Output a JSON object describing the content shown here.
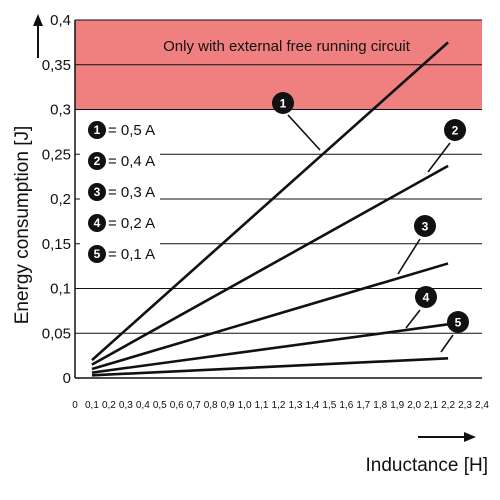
{
  "chart_data": {
    "type": "line",
    "title": "",
    "xlabel": "Inductance [H]",
    "ylabel": "Energy consumption  [J]",
    "xlim": [
      0,
      2.4
    ],
    "ylim": [
      0,
      0.4
    ],
    "x_ticks": [
      "0",
      "0,1",
      "0,2",
      "0,3",
      "0,4",
      "0,5",
      "0,6",
      "0,7",
      "0,8",
      "0,9",
      "1,0",
      "1,1",
      "1,2",
      "1,3",
      "1,4",
      "1,5",
      "1,6",
      "1,7",
      "1,8",
      "1,9",
      "2,0",
      "2,1",
      "2,2",
      "2,3",
      "2,4"
    ],
    "y_ticks": [
      "0",
      "0,05",
      "0,1",
      "0,15",
      "0,2",
      "0,25",
      "0,3",
      "0,35",
      "0,4"
    ],
    "grid": "horizontal",
    "region": {
      "label": "Only with external free running circuit",
      "y_from": 0.3,
      "y_to": 0.4,
      "color": "#f08080"
    },
    "series": [
      {
        "name": "= 0,5 A",
        "badge": "1",
        "x": [
          0.1,
          2.2
        ],
        "y": [
          0.02,
          0.375
        ]
      },
      {
        "name": "= 0,4 A",
        "badge": "2",
        "x": [
          0.1,
          2.2
        ],
        "y": [
          0.015,
          0.237
        ]
      },
      {
        "name": "= 0,3 A",
        "badge": "3",
        "x": [
          0.1,
          2.2
        ],
        "y": [
          0.01,
          0.128
        ]
      },
      {
        "name": "= 0,2 A",
        "badge": "4",
        "x": [
          0.1,
          2.2
        ],
        "y": [
          0.006,
          0.06
        ]
      },
      {
        "name": "= 0,1 A",
        "badge": "5",
        "x": [
          0.1,
          2.2
        ],
        "y": [
          0.003,
          0.022
        ]
      }
    ],
    "legend_position": "left",
    "colors": {
      "line": "#111111",
      "grid": "#111111",
      "badge": "#111111"
    }
  }
}
